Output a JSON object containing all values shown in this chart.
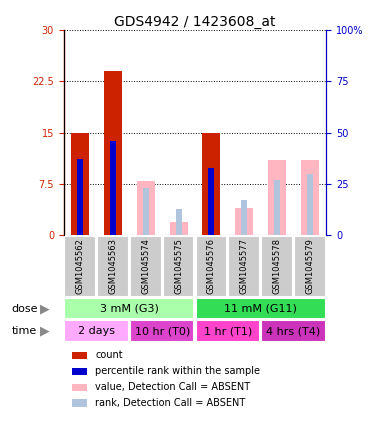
{
  "title": "GDS4942 / 1423608_at",
  "samples": [
    "GSM1045562",
    "GSM1045563",
    "GSM1045574",
    "GSM1045575",
    "GSM1045576",
    "GSM1045577",
    "GSM1045578",
    "GSM1045579"
  ],
  "red_bars": [
    15,
    24,
    0,
    0,
    15,
    0,
    0,
    0
  ],
  "blue_bars_pct": [
    37,
    46,
    0,
    0,
    33,
    0,
    0,
    0
  ],
  "pink_bars": [
    0,
    0,
    8,
    2,
    0,
    4,
    11,
    11
  ],
  "lightblue_bars_pct": [
    0,
    0,
    23,
    13,
    0,
    17,
    27,
    30
  ],
  "left_ylim": [
    0,
    30
  ],
  "right_ylim": [
    0,
    100
  ],
  "left_yticks": [
    0,
    7.5,
    15,
    22.5,
    30
  ],
  "right_yticks": [
    0,
    25,
    50,
    75,
    100
  ],
  "left_yticklabels": [
    "0",
    "7.5",
    "15",
    "22.5",
    "30"
  ],
  "right_yticklabels": [
    "0",
    "25",
    "50",
    "75",
    "100%"
  ],
  "dose_groups": [
    {
      "label": "3 mM (G3)",
      "start": 0,
      "end": 4,
      "color": "#aaffaa"
    },
    {
      "label": "11 mM (G11)",
      "start": 4,
      "end": 8,
      "color": "#33dd55"
    }
  ],
  "time_groups": [
    {
      "label": "2 days",
      "start": 0,
      "end": 2,
      "color": "#ffaaff"
    },
    {
      "label": "10 hr (T0)",
      "start": 2,
      "end": 4,
      "color": "#dd44cc"
    },
    {
      "label": "1 hr (T1)",
      "start": 4,
      "end": 6,
      "color": "#ff44cc"
    },
    {
      "label": "4 hrs (T4)",
      "start": 6,
      "end": 8,
      "color": "#cc33bb"
    }
  ],
  "legend_items": [
    {
      "color": "#cc2200",
      "label": "count"
    },
    {
      "color": "#0000cc",
      "label": "percentile rank within the sample"
    },
    {
      "color": "#ffb6c1",
      "label": "value, Detection Call = ABSENT"
    },
    {
      "color": "#b0c4de",
      "label": "rank, Detection Call = ABSENT"
    }
  ],
  "bar_width": 0.55,
  "thin_bar_width": 0.18,
  "title_fontsize": 10,
  "tick_fontsize": 7,
  "sample_fontsize": 6,
  "legend_fontsize": 7,
  "row_label_fontsize": 8,
  "sample_box_color": "#cccccc",
  "left_axis_color": "#cc2200",
  "right_axis_color": "#0000cc",
  "grid_color": "black",
  "grid_linestyle": ":",
  "grid_linewidth": 0.7
}
